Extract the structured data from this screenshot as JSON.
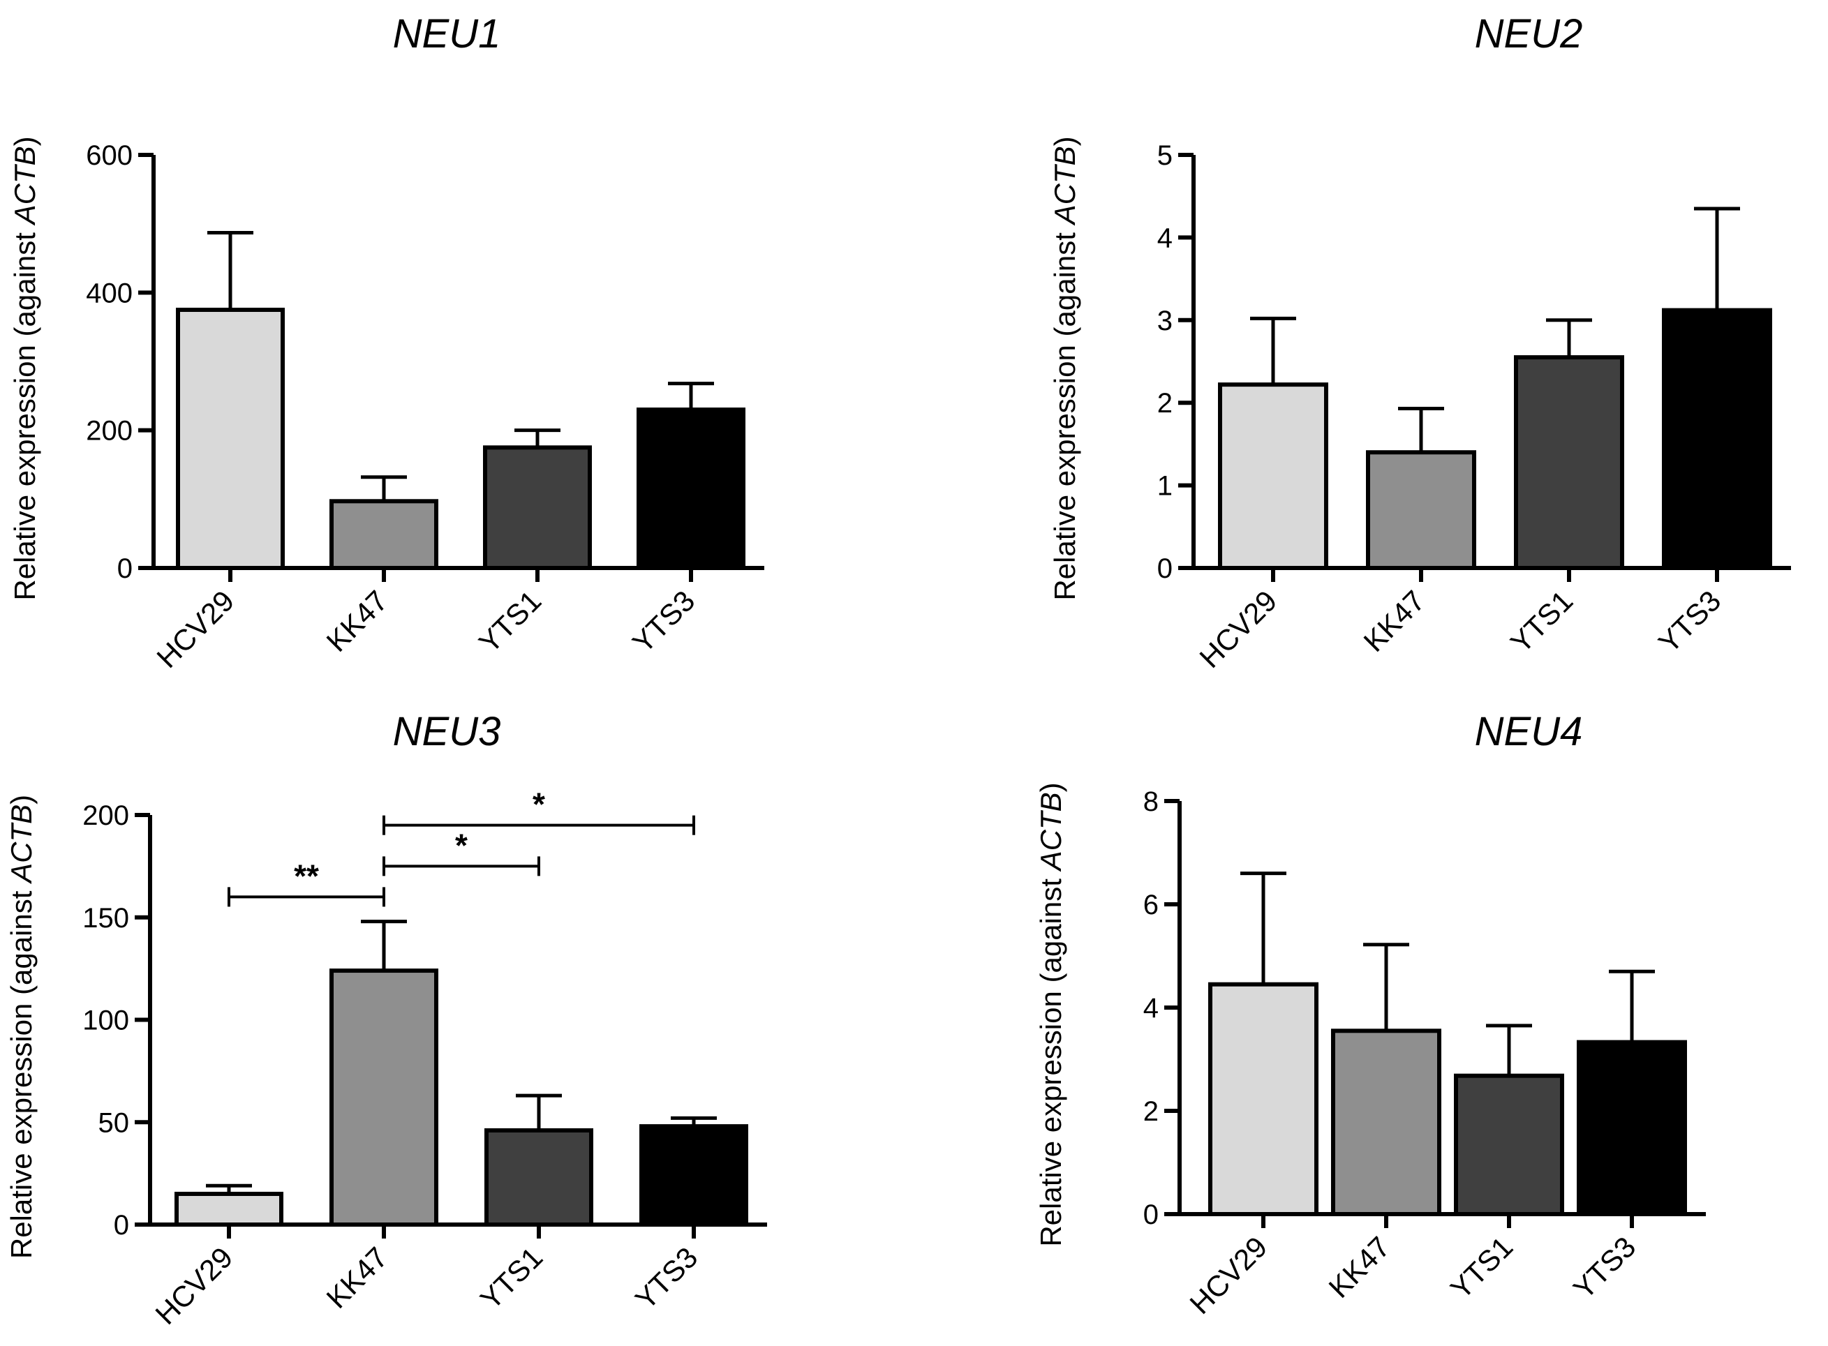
{
  "figure": {
    "panels_label": "NEU1–NEU4 relative expression panels"
  },
  "chart_data": [
    {
      "type": "bar",
      "title": "NEU1",
      "ylabel_prefix": "Relative expression (against ",
      "ylabel_gene": "ACTB",
      "ylabel_suffix": ")",
      "categories": [
        "HCV29",
        "KK47",
        "YTS1",
        "YTS3"
      ],
      "values": [
        375,
        97,
        175,
        230
      ],
      "errors": [
        112,
        35,
        25,
        38
      ],
      "ylim": [
        0,
        600
      ],
      "yticks": [
        0,
        200,
        400,
        600
      ],
      "colors": [
        "#d9d9d9",
        "#8f8f8f",
        "#404040",
        "#000000"
      ],
      "significance": []
    },
    {
      "type": "bar",
      "title": "NEU2",
      "ylabel_prefix": "Relative expression (against ",
      "ylabel_gene": "ACTB",
      "ylabel_suffix": ")",
      "categories": [
        "HCV29",
        "KK47",
        "YTS1",
        "YTS3"
      ],
      "values": [
        2.22,
        1.4,
        2.55,
        3.12
      ],
      "errors": [
        0.8,
        0.53,
        0.45,
        1.23
      ],
      "ylim": [
        0,
        5
      ],
      "yticks": [
        0,
        1,
        2,
        3,
        4,
        5
      ],
      "colors": [
        "#d9d9d9",
        "#8f8f8f",
        "#404040",
        "#000000"
      ],
      "significance": []
    },
    {
      "type": "bar",
      "title": "NEU3",
      "ylabel_prefix": "Relative expression (against ",
      "ylabel_gene": "ACTB",
      "ylabel_suffix": ")",
      "categories": [
        "HCV29",
        "KK47",
        "YTS1",
        "YTS3"
      ],
      "values": [
        15,
        124,
        46,
        48
      ],
      "errors": [
        4,
        24,
        17,
        4
      ],
      "ylim": [
        0,
        200
      ],
      "yticks": [
        0,
        50,
        100,
        150,
        200
      ],
      "colors": [
        "#d9d9d9",
        "#8f8f8f",
        "#404040",
        "#000000"
      ],
      "significance": [
        {
          "from": 0,
          "to": 1,
          "y": 160,
          "label": "**"
        },
        {
          "from": 1,
          "to": 2,
          "y": 175,
          "label": "*"
        },
        {
          "from": 1,
          "to": 3,
          "y": 195,
          "label": "*"
        }
      ]
    },
    {
      "type": "bar",
      "title": "NEU4",
      "ylabel_prefix": "Relative expression (against ",
      "ylabel_gene": "ACTB",
      "ylabel_suffix": ")",
      "categories": [
        "HCV29",
        "KK47",
        "YTS1",
        "YTS3"
      ],
      "values": [
        4.45,
        3.55,
        2.68,
        3.33
      ],
      "errors": [
        2.15,
        1.67,
        0.97,
        1.37
      ],
      "ylim": [
        0,
        8
      ],
      "yticks": [
        0,
        2,
        4,
        6,
        8
      ],
      "colors": [
        "#d9d9d9",
        "#8f8f8f",
        "#404040",
        "#000000"
      ],
      "significance": []
    }
  ]
}
